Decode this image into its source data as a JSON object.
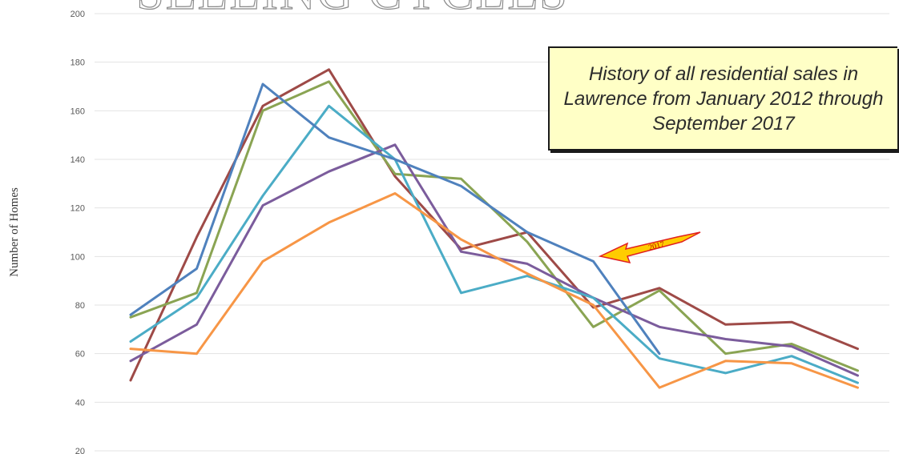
{
  "chart_data": {
    "type": "line",
    "title": "SELLING CYCLES",
    "xlabel": "",
    "ylabel": "Number of Homes",
    "ylim": [
      20,
      200
    ],
    "yticks": [
      20,
      40,
      60,
      80,
      100,
      120,
      140,
      160,
      180,
      200
    ],
    "grid": true,
    "x": [
      1,
      2,
      3,
      4,
      5,
      6,
      7,
      8,
      9,
      10,
      11,
      12,
      13
    ],
    "series": [
      {
        "color": "#9e4a47",
        "values": [
          49,
          108,
          162,
          177,
          133,
          103,
          110,
          79,
          87,
          72,
          73,
          62,
          null
        ]
      },
      {
        "color": "#8aa453",
        "values": [
          75,
          85,
          160,
          172,
          134,
          132,
          106,
          71,
          86,
          60,
          64,
          53,
          null
        ]
      },
      {
        "color": "#7b5c9c",
        "values": [
          57,
          72,
          121,
          135,
          146,
          102,
          97,
          83,
          71,
          66,
          63,
          51,
          null
        ]
      },
      {
        "color": "#4bacc6",
        "values": [
          65,
          83,
          125,
          162,
          140,
          85,
          92,
          83,
          58,
          52,
          59,
          48,
          null
        ]
      },
      {
        "color": "#f79646",
        "values": [
          62,
          60,
          98,
          114,
          126,
          107,
          93,
          80,
          46,
          57,
          56,
          46,
          null
        ]
      },
      {
        "color": "#4f81bd",
        "values": [
          76,
          95,
          171,
          149,
          140,
          129,
          110,
          98,
          60,
          null,
          null,
          null,
          null
        ]
      }
    ]
  },
  "annotations": {
    "callout_text": "History of all residential sales in Lawrence from January 2012 through September 2017",
    "arrow_label": "2017",
    "arrow_fill": "#ffcc00",
    "arrow_stroke": "#e02020"
  }
}
